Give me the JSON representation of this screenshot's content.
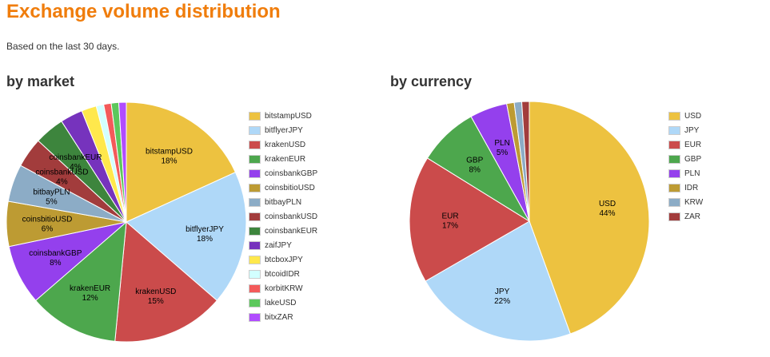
{
  "header": {
    "title": "Exchange volume distribution",
    "subtitle": "Based on the last 30 days."
  },
  "market": {
    "heading": "by market"
  },
  "currency": {
    "heading": "by currency"
  },
  "chart_data": [
    {
      "id": "market",
      "type": "pie",
      "title": "by market",
      "legend": "right",
      "slices": [
        {
          "label": "bitstampUSD",
          "value": 18,
          "color": "#edc240",
          "show_label": true
        },
        {
          "label": "bitflyerJPY",
          "value": 18,
          "color": "#afd8f8",
          "show_label": true
        },
        {
          "label": "krakenUSD",
          "value": 15,
          "color": "#cb4b4b",
          "show_label": true
        },
        {
          "label": "krakenEUR",
          "value": 12,
          "color": "#4da74d",
          "show_label": true
        },
        {
          "label": "coinsbankGBP",
          "value": 8,
          "color": "#9440ed",
          "show_label": true
        },
        {
          "label": "coinsbitioUSD",
          "value": 6,
          "color": "#bd9b33",
          "show_label": true
        },
        {
          "label": "bitbayPLN",
          "value": 5,
          "color": "#8cacc6",
          "show_label": true
        },
        {
          "label": "coinsbankUSD",
          "value": 4,
          "color": "#a23c3c",
          "show_label": true
        },
        {
          "label": "coinsbankEUR",
          "value": 4,
          "color": "#3d853d",
          "show_label": true
        },
        {
          "label": "zaifJPY",
          "value": 3,
          "color": "#7633bd",
          "show_label": false
        },
        {
          "label": "btcboxJPY",
          "value": 2,
          "color": "#ffe84c",
          "show_label": false
        },
        {
          "label": "btcoidIDR",
          "value": 1,
          "color": "#d2ffff",
          "show_label": false
        },
        {
          "label": "korbitKRW",
          "value": 1,
          "color": "#f35a5a",
          "show_label": false
        },
        {
          "label": "lakeUSD",
          "value": 1,
          "color": "#5cc85c",
          "show_label": false
        },
        {
          "label": "bitxZAR",
          "value": 1,
          "color": "#b14cff",
          "show_label": false
        }
      ]
    },
    {
      "id": "currency",
      "type": "pie",
      "title": "by currency",
      "legend": "right",
      "slices": [
        {
          "label": "USD",
          "value": 44,
          "color": "#edc240",
          "show_label": true
        },
        {
          "label": "JPY",
          "value": 22,
          "color": "#afd8f8",
          "show_label": true
        },
        {
          "label": "EUR",
          "value": 17,
          "color": "#cb4b4b",
          "show_label": true
        },
        {
          "label": "GBP",
          "value": 8,
          "color": "#4da74d",
          "show_label": true
        },
        {
          "label": "PLN",
          "value": 5,
          "color": "#9440ed",
          "show_label": true
        },
        {
          "label": "IDR",
          "value": 1,
          "color": "#bd9b33",
          "show_label": false
        },
        {
          "label": "KRW",
          "value": 1,
          "color": "#8cacc6",
          "show_label": false
        },
        {
          "label": "ZAR",
          "value": 1,
          "color": "#a23c3c",
          "show_label": false
        }
      ]
    }
  ]
}
